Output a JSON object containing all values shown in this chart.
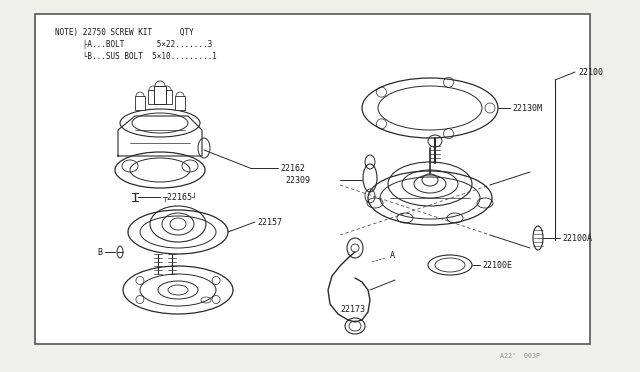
{
  "bg_color": "#f0f0eb",
  "box_bg": "#ffffff",
  "box_border": "#666666",
  "line_color": "#2a2a2a",
  "text_color": "#1a1a1a",
  "footer_color": "#888888",
  "note_line1": "NOTE) 22750 SCREW KIT      QTY",
  "note_line2": "      ├A...BOLT       5×22.......3",
  "note_line3": "      └B...SUS BOLT  5×10.........1",
  "footer": "A22'  003P",
  "label_fontsize": 6.0,
  "note_fontsize": 5.5
}
